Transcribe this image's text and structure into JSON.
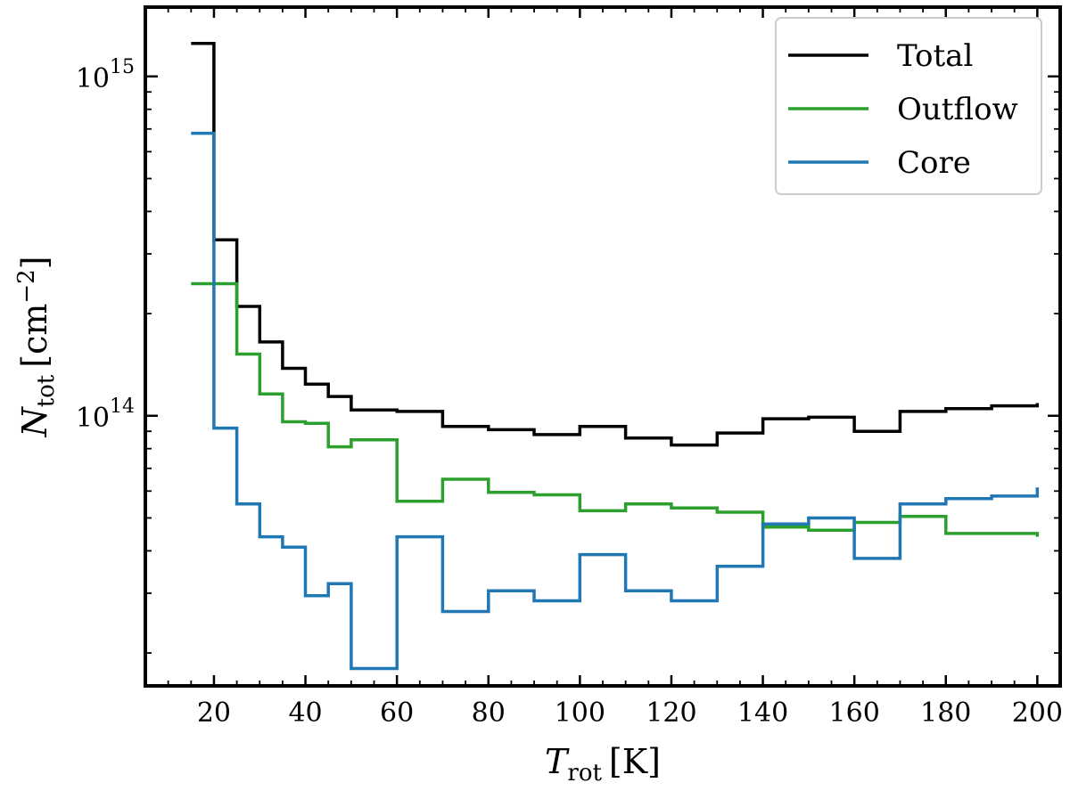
{
  "chart_data": {
    "type": "line",
    "drawstyle": "steps-post",
    "xlabel": "T",
    "xlabel_sub": "rot",
    "xlabel_unit": "[K]",
    "ylabel": "N",
    "ylabel_sub": "tot",
    "ylabel_unit": "[cm",
    "ylabel_unit_sup": "−2",
    "ylabel_unit_close": "]",
    "xlim": [
      5,
      205
    ],
    "ylim": [
      16000000000000.0,
      1600000000000000.0
    ],
    "yscale": "log",
    "x_ticks": [
      20,
      40,
      60,
      80,
      100,
      120,
      140,
      160,
      180,
      200
    ],
    "x_tick_labels": [
      "20",
      "40",
      "60",
      "80",
      "100",
      "120",
      "140",
      "160",
      "180",
      "200"
    ],
    "y_ticks": [
      100000000000000.0,
      1000000000000000.0
    ],
    "y_tick_labels": [
      {
        "base": "10",
        "exp": "14"
      },
      {
        "base": "10",
        "exp": "15"
      }
    ],
    "legend": {
      "position": "top-right",
      "entries": [
        "Total",
        "Outflow",
        "Core"
      ]
    },
    "x": [
      15,
      20,
      25,
      30,
      35,
      40,
      45,
      50,
      60,
      70,
      80,
      90,
      100,
      110,
      120,
      130,
      140,
      150,
      160,
      170,
      180,
      190,
      200
    ],
    "series": [
      {
        "name": "Total",
        "color": "#000000",
        "values": [
          1250000000000000.0,
          330000000000000.0,
          210000000000000.0,
          165000000000000.0,
          138000000000000.0,
          124000000000000.0,
          114000000000000.0,
          104000000000000.0,
          103000000000000.0,
          93000000000000.0,
          91000000000000.0,
          88000000000000.0,
          93000000000000.0,
          86000000000000.0,
          82000000000000.0,
          89000000000000.0,
          98000000000000.0,
          99000000000000.0,
          90000000000000.0,
          103000000000000.0,
          105000000000000.0,
          107000000000000.0,
          109000000000000.0
        ]
      },
      {
        "name": "Outflow",
        "color": "#2ca02c",
        "values": [
          245000000000000.0,
          245000000000000.0,
          152000000000000.0,
          116000000000000.0,
          96000000000000.0,
          95000000000000.0,
          81000000000000.0,
          85000000000000.0,
          56000000000000.0,
          65000000000000.0,
          59500000000000.0,
          58500000000000.0,
          52500000000000.0,
          55000000000000.0,
          53500000000000.0,
          52000000000000.0,
          47000000000000.0,
          46000000000000.0,
          48500000000000.0,
          50500000000000.0,
          45000000000000.0,
          45000000000000.0,
          44000000000000.0
        ]
      },
      {
        "name": "Core",
        "color": "#1f77b4",
        "values": [
          680000000000000.0,
          92000000000000.0,
          55000000000000.0,
          44000000000000.0,
          41000000000000.0,
          29500000000000.0,
          32000000000000.0,
          18000000000000.0,
          44000000000000.0,
          26500000000000.0,
          30500000000000.0,
          28500000000000.0,
          39000000000000.0,
          30500000000000.0,
          28500000000000.0,
          36000000000000.0,
          48000000000000.0,
          50000000000000.0,
          38000000000000.0,
          55000000000000.0,
          57000000000000.0,
          58000000000000.0,
          61500000000000.0
        ]
      }
    ]
  }
}
